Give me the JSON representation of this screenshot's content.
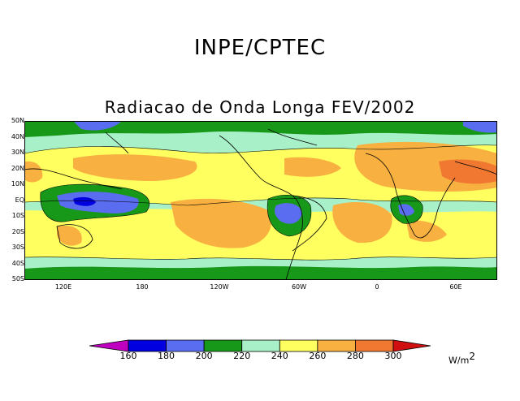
{
  "header": {
    "title": "INPE/CPTEC",
    "subtitle": "Radiacao de Onda Longa FEV/2002"
  },
  "map": {
    "lat_labels": [
      "50N",
      "40N",
      "30N",
      "20N",
      "10N",
      "EQ",
      "10S",
      "20S",
      "30S",
      "40S",
      "50S"
    ],
    "lon_labels": [
      "120E",
      "180",
      "120W",
      "60W",
      "0",
      "60E"
    ]
  },
  "legend": {
    "values": [
      "160",
      "180",
      "200",
      "220",
      "240",
      "260",
      "280",
      "300"
    ],
    "colors": [
      "#c000c0",
      "#0000e0",
      "#5a6cf0",
      "#189818",
      "#a8f0c8",
      "#ffff60",
      "#f8b040",
      "#f07830",
      "#d01010"
    ],
    "units": "W/m",
    "units_exp": "2"
  }
}
